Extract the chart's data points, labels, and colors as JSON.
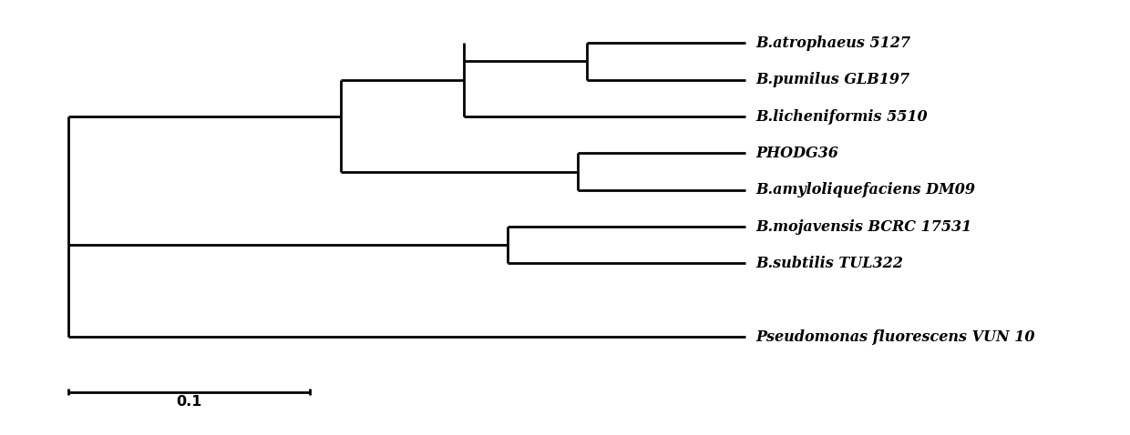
{
  "taxa_order_top_to_bottom": [
    "B.atrophaeus 5127",
    "B.pumilus GLB197",
    "B.licheniformis 5510",
    "PHODG36",
    "B.amyloliquefaciens DM09",
    "B.mojavensis BCRC 17531",
    "B.subtilis TUL322",
    "Pseudomonas fluorescens VUN 10"
  ],
  "background_color": "#ffffff",
  "line_color": "#000000",
  "lw": 2.0,
  "font_size": 11.5
}
